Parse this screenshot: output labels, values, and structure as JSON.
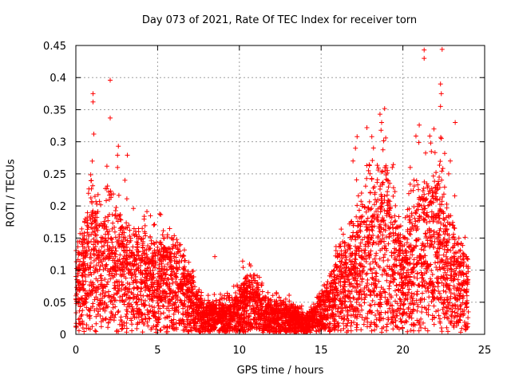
{
  "chart_data": {
    "type": "scatter",
    "title": "Day 073 of 2021, Rate Of TEC Index for receiver torn",
    "xlabel": "GPS time / hours",
    "ylabel": "ROTI / TECUs",
    "xlim": [
      0,
      25
    ],
    "ylim": [
      0,
      0.45
    ],
    "xticks": [
      "0",
      "5",
      "10",
      "15",
      "20",
      "25"
    ],
    "yticks": [
      "0",
      "0.05",
      "0.1",
      "0.15",
      "0.2",
      "0.25",
      "0.3",
      "0.35",
      "0.4",
      "0.45"
    ],
    "grid": true,
    "marker": "+",
    "color": "#ff0000",
    "envelope": {
      "x": [
        0,
        0.5,
        1.0,
        1.5,
        2.0,
        2.5,
        3.0,
        3.5,
        4.0,
        4.5,
        5.0,
        5.5,
        6.0,
        6.5,
        7.0,
        7.5,
        8.0,
        8.5,
        9.0,
        9.5,
        10.0,
        10.5,
        11.0,
        11.5,
        12.0,
        12.5,
        13.0,
        13.5,
        14.0,
        14.5,
        15.0,
        15.5,
        16.0,
        16.5,
        17.0,
        17.5,
        18.0,
        18.5,
        19.0,
        19.5,
        20.0,
        20.5,
        21.0,
        21.5,
        22.0,
        22.5,
        23.0,
        23.5,
        24.0
      ],
      "typical_max": [
        0.13,
        0.17,
        0.24,
        0.19,
        0.2,
        0.2,
        0.17,
        0.15,
        0.16,
        0.15,
        0.14,
        0.15,
        0.15,
        0.12,
        0.09,
        0.06,
        0.05,
        0.05,
        0.05,
        0.05,
        0.07,
        0.09,
        0.08,
        0.06,
        0.05,
        0.05,
        0.05,
        0.04,
        0.03,
        0.04,
        0.06,
        0.08,
        0.14,
        0.15,
        0.17,
        0.21,
        0.25,
        0.24,
        0.28,
        0.2,
        0.15,
        0.22,
        0.24,
        0.22,
        0.28,
        0.22,
        0.18,
        0.14,
        0.11
      ]
    },
    "peaks": [
      {
        "x": 1.05,
        "y": 0.375
      },
      {
        "x": 1.05,
        "y": 0.362
      },
      {
        "x": 1.1,
        "y": 0.312
      },
      {
        "x": 2.1,
        "y": 0.396
      },
      {
        "x": 2.1,
        "y": 0.337
      },
      {
        "x": 2.6,
        "y": 0.293
      },
      {
        "x": 2.55,
        "y": 0.279
      },
      {
        "x": 3.15,
        "y": 0.279
      },
      {
        "x": 2.55,
        "y": 0.26
      },
      {
        "x": 1.9,
        "y": 0.262
      },
      {
        "x": 3.0,
        "y": 0.24
      },
      {
        "x": 8.5,
        "y": 0.121
      },
      {
        "x": 10.2,
        "y": 0.114
      },
      {
        "x": 17.2,
        "y": 0.308
      },
      {
        "x": 17.1,
        "y": 0.29
      },
      {
        "x": 17.8,
        "y": 0.322
      },
      {
        "x": 18.1,
        "y": 0.308
      },
      {
        "x": 18.6,
        "y": 0.343
      },
      {
        "x": 18.7,
        "y": 0.33
      },
      {
        "x": 18.95,
        "y": 0.306
      },
      {
        "x": 19.35,
        "y": 0.26
      },
      {
        "x": 21.3,
        "y": 0.443
      },
      {
        "x": 21.3,
        "y": 0.43
      },
      {
        "x": 22.4,
        "y": 0.444
      },
      {
        "x": 22.3,
        "y": 0.39
      },
      {
        "x": 22.35,
        "y": 0.375
      },
      {
        "x": 22.3,
        "y": 0.355
      },
      {
        "x": 21.0,
        "y": 0.326
      },
      {
        "x": 21.9,
        "y": 0.32
      },
      {
        "x": 22.35,
        "y": 0.305
      },
      {
        "x": 21.7,
        "y": 0.298
      },
      {
        "x": 23.2,
        "y": 0.33
      },
      {
        "x": 22.9,
        "y": 0.27
      },
      {
        "x": 22.8,
        "y": 0.25
      },
      {
        "x": 16.95,
        "y": 0.27
      },
      {
        "x": 20.45,
        "y": 0.26
      }
    ]
  }
}
